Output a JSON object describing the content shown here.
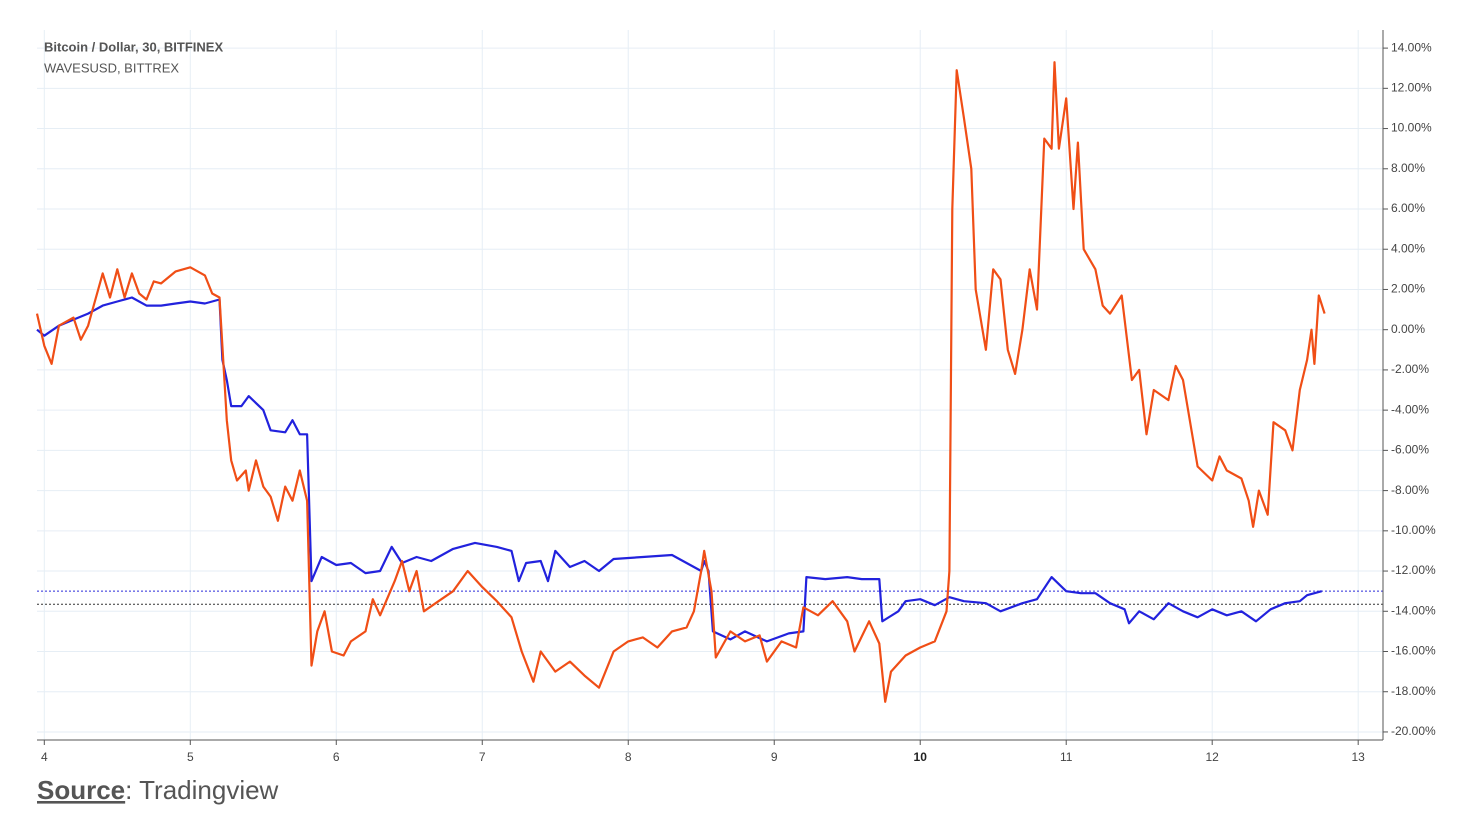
{
  "chart_data": {
    "type": "line",
    "grid": true,
    "xlim": [
      3.95,
      13.17
    ],
    "ylim": [
      -20.4,
      14.9
    ],
    "xticks": [
      4,
      5,
      6,
      7,
      8,
      9,
      10,
      11,
      12,
      13
    ],
    "bold_xticks": [
      10
    ],
    "yticks": [
      {
        "value": 14,
        "label": "14.00%"
      },
      {
        "value": 12,
        "label": "12.00%"
      },
      {
        "value": 10,
        "label": "10.00%"
      },
      {
        "value": 8,
        "label": "8.00%"
      },
      {
        "value": 6,
        "label": "6.00%"
      },
      {
        "value": 4,
        "label": "4.00%"
      },
      {
        "value": 2,
        "label": "2.00%"
      },
      {
        "value": 0,
        "label": "0.00%"
      },
      {
        "value": -2,
        "label": "-2.00%"
      },
      {
        "value": -4,
        "label": "-4.00%"
      },
      {
        "value": -6,
        "label": "-6.00%"
      },
      {
        "value": -8,
        "label": "-8.00%"
      },
      {
        "value": -10,
        "label": "-10.00%"
      },
      {
        "value": -12,
        "label": "-12.00%"
      },
      {
        "value": -14,
        "label": "-14.00%"
      },
      {
        "value": -16,
        "label": "-16.00%"
      },
      {
        "value": -18,
        "label": "-18.00%"
      },
      {
        "value": -20,
        "label": "-20.00%"
      }
    ],
    "hlines": [
      {
        "value": -13.0,
        "color": "#2b2bd9"
      },
      {
        "value": -13.65,
        "color": "#333333"
      }
    ],
    "series": [
      {
        "name": "Bitcoin / Dollar, 30, BITFINEX",
        "color": "#2222dd",
        "x": [
          3.95,
          4.0,
          4.1,
          4.2,
          4.3,
          4.4,
          4.5,
          4.6,
          4.7,
          4.8,
          4.9,
          5.0,
          5.1,
          5.2,
          5.22,
          5.25,
          5.28,
          5.35,
          5.4,
          5.5,
          5.55,
          5.65,
          5.7,
          5.75,
          5.8,
          5.83,
          5.9,
          6.0,
          6.1,
          6.2,
          6.3,
          6.38,
          6.45,
          6.55,
          6.65,
          6.8,
          6.95,
          7.1,
          7.2,
          7.25,
          7.3,
          7.4,
          7.45,
          7.5,
          7.6,
          7.7,
          7.8,
          7.9,
          8.1,
          8.3,
          8.4,
          8.5,
          8.52,
          8.55,
          8.58,
          8.7,
          8.8,
          8.95,
          9.1,
          9.2,
          9.22,
          9.35,
          9.5,
          9.6,
          9.72,
          9.74,
          9.85,
          9.9,
          10.0,
          10.1,
          10.2,
          10.3,
          10.45,
          10.55,
          10.7,
          10.8,
          10.9,
          11.0,
          11.1,
          11.2,
          11.3,
          11.4,
          11.43,
          11.5,
          11.6,
          11.7,
          11.8,
          11.9,
          12.0,
          12.1,
          12.2,
          12.3,
          12.4,
          12.5,
          12.6,
          12.65,
          12.75
        ],
        "values": [
          0,
          -0.3,
          0.2,
          0.5,
          0.8,
          1.2,
          1.4,
          1.6,
          1.2,
          1.2,
          1.3,
          1.4,
          1.3,
          1.5,
          -1.5,
          -2.5,
          -3.8,
          -3.8,
          -3.3,
          -4.0,
          -5.0,
          -5.1,
          -4.5,
          -5.2,
          -5.2,
          -12.5,
          -11.3,
          -11.7,
          -11.6,
          -12.1,
          -12.0,
          -10.8,
          -11.6,
          -11.3,
          -11.5,
          -10.9,
          -10.6,
          -10.8,
          -11.0,
          -12.5,
          -11.6,
          -11.5,
          -12.5,
          -11.0,
          -11.8,
          -11.5,
          -12.0,
          -11.4,
          -11.3,
          -11.2,
          -11.6,
          -12.0,
          -11.5,
          -12.0,
          -15.0,
          -15.4,
          -15.0,
          -15.5,
          -15.1,
          -15.0,
          -12.3,
          -12.4,
          -12.3,
          -12.4,
          -12.4,
          -14.5,
          -14.0,
          -13.5,
          -13.4,
          -13.7,
          -13.3,
          -13.5,
          -13.6,
          -14.0,
          -13.6,
          -13.4,
          -12.3,
          -13.0,
          -13.1,
          -13.1,
          -13.6,
          -13.9,
          -14.6,
          -14.0,
          -14.4,
          -13.6,
          -14.0,
          -14.3,
          -13.9,
          -14.2,
          -14.0,
          -14.5,
          -13.9,
          -13.6,
          -13.5,
          -13.2,
          -13.0
        ]
      },
      {
        "name": "WAVESUSD, BITTREX",
        "color": "#f04e16",
        "x": [
          3.95,
          4.0,
          4.05,
          4.1,
          4.2,
          4.25,
          4.3,
          4.35,
          4.4,
          4.45,
          4.5,
          4.55,
          4.6,
          4.65,
          4.7,
          4.75,
          4.8,
          4.9,
          5.0,
          5.1,
          5.15,
          5.2,
          5.25,
          5.28,
          5.32,
          5.38,
          5.4,
          5.45,
          5.5,
          5.55,
          5.6,
          5.65,
          5.7,
          5.75,
          5.8,
          5.83,
          5.87,
          5.92,
          5.97,
          6.05,
          6.1,
          6.2,
          6.25,
          6.3,
          6.4,
          6.45,
          6.5,
          6.55,
          6.6,
          6.7,
          6.8,
          6.9,
          7.0,
          7.1,
          7.2,
          7.27,
          7.35,
          7.4,
          7.5,
          7.6,
          7.7,
          7.8,
          7.9,
          8.0,
          8.1,
          8.2,
          8.3,
          8.4,
          8.45,
          8.5,
          8.52,
          8.57,
          8.6,
          8.7,
          8.8,
          8.9,
          8.95,
          9.05,
          9.15,
          9.2,
          9.3,
          9.4,
          9.5,
          9.55,
          9.65,
          9.72,
          9.76,
          9.8,
          9.9,
          10.0,
          10.1,
          10.18,
          10.2,
          10.22,
          10.25,
          10.3,
          10.35,
          10.38,
          10.45,
          10.5,
          10.55,
          10.6,
          10.65,
          10.7,
          10.75,
          10.8,
          10.85,
          10.9,
          10.92,
          10.95,
          11.0,
          11.05,
          11.08,
          11.12,
          11.2,
          11.25,
          11.3,
          11.38,
          11.45,
          11.5,
          11.55,
          11.6,
          11.7,
          11.75,
          11.8,
          11.9,
          12.0,
          12.05,
          12.1,
          12.2,
          12.25,
          12.28,
          12.32,
          12.38,
          12.42,
          12.5,
          12.55,
          12.6,
          12.65,
          12.68,
          12.7,
          12.73,
          12.77
        ],
        "values": [
          0.8,
          -0.8,
          -1.7,
          0.2,
          0.6,
          -0.5,
          0.2,
          1.5,
          2.8,
          1.6,
          3.0,
          1.6,
          2.8,
          1.8,
          1.5,
          2.4,
          2.3,
          2.9,
          3.1,
          2.7,
          1.8,
          1.6,
          -4.5,
          -6.5,
          -7.5,
          -7.0,
          -8.0,
          -6.5,
          -7.8,
          -8.3,
          -9.5,
          -7.8,
          -8.5,
          -7.0,
          -8.5,
          -16.7,
          -15.0,
          -14.0,
          -16.0,
          -16.2,
          -15.5,
          -15.0,
          -13.4,
          -14.2,
          -12.5,
          -11.5,
          -13.0,
          -12.0,
          -14.0,
          -13.5,
          -13.0,
          -12.0,
          -12.8,
          -13.5,
          -14.3,
          -16.0,
          -17.5,
          -16.0,
          -17.0,
          -16.5,
          -17.2,
          -17.8,
          -16.0,
          -15.5,
          -15.3,
          -15.8,
          -15.0,
          -14.8,
          -14.0,
          -12.0,
          -11.0,
          -13.0,
          -16.3,
          -15.0,
          -15.5,
          -15.2,
          -16.5,
          -15.5,
          -15.8,
          -13.8,
          -14.2,
          -13.5,
          -14.5,
          -16.0,
          -14.5,
          -15.6,
          -18.5,
          -17.0,
          -16.2,
          -15.8,
          -15.5,
          -14.0,
          -12.0,
          6.0,
          12.9,
          10.5,
          8.0,
          2.0,
          -1.0,
          3.0,
          2.5,
          -1.0,
          -2.2,
          0.0,
          3.0,
          1.0,
          9.5,
          9.0,
          13.3,
          9.0,
          11.5,
          6.0,
          9.3,
          4.0,
          3.0,
          1.2,
          0.8,
          1.7,
          -2.5,
          -2.0,
          -5.2,
          -3.0,
          -3.5,
          -1.8,
          -2.5,
          -6.8,
          -7.5,
          -6.3,
          -7.0,
          -7.4,
          -8.5,
          -9.8,
          -8.0,
          -9.2,
          -4.6,
          -5.0,
          -6.0,
          -3.0,
          -1.5,
          0.0,
          -1.7,
          1.7,
          0.8
        ]
      }
    ],
    "source_label": "Source",
    "source_text": ": Tradingview"
  }
}
